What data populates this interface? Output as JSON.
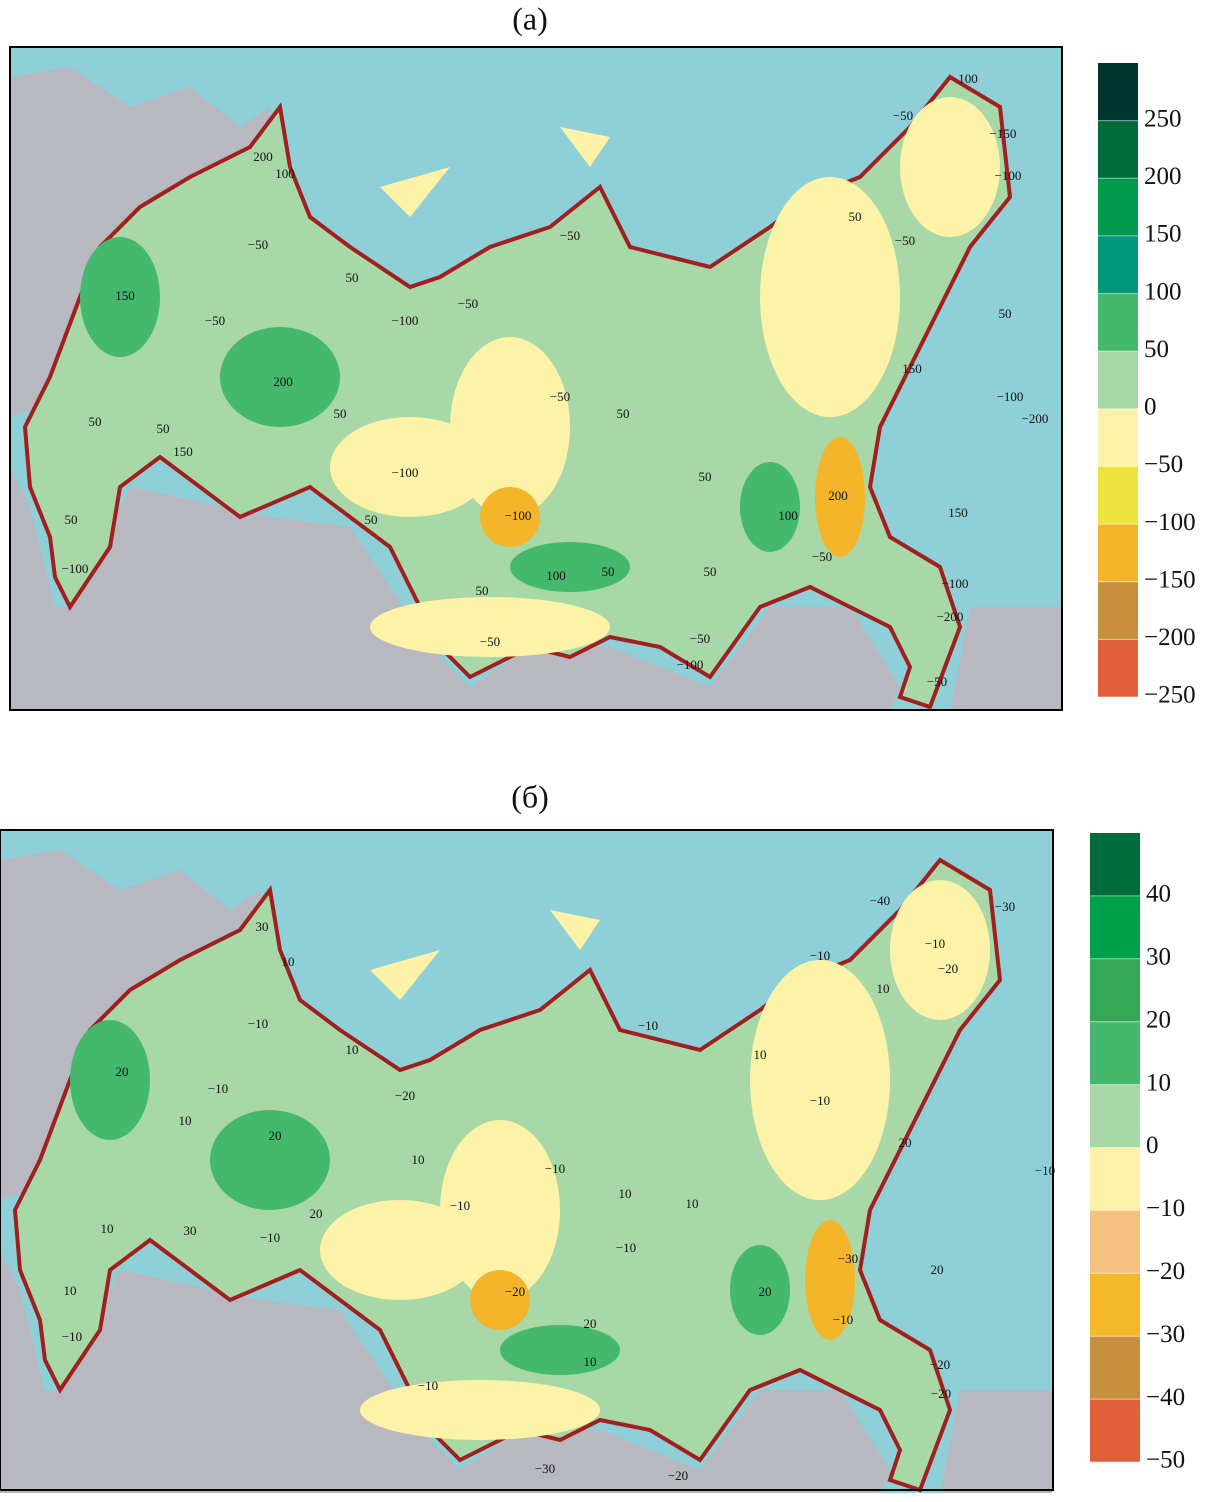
{
  "panels": [
    {
      "title": "(a)",
      "colorbar": {
        "lim": [
          -250,
          300
        ],
        "ticks": [
          {
            "value": 250,
            "label": "250"
          },
          {
            "value": 200,
            "label": "200"
          },
          {
            "value": 150,
            "label": "150"
          },
          {
            "value": 100,
            "label": "100"
          },
          {
            "value": 50,
            "label": "50"
          },
          {
            "value": 0,
            "label": "0"
          },
          {
            "value": -50,
            "label": "−50"
          },
          {
            "value": -100,
            "label": "−100"
          },
          {
            "value": -150,
            "label": "−150"
          },
          {
            "value": -200,
            "label": "−200"
          },
          {
            "value": -250,
            "label": "−250"
          }
        ],
        "colors": [
          "#e0603a",
          "#c8903e",
          "#f5b52a",
          "#efe33e",
          "#fdf3a8",
          "#a8d8a8",
          "#44b86c",
          "#00977a",
          "#009a4c",
          "#006c3c",
          "#003530"
        ]
      },
      "contour_labels": [
        "100",
        "−50",
        "−150",
        "−100",
        "200",
        "100",
        "−50",
        "50",
        "−50",
        "−50",
        "50",
        "150",
        "−50",
        "−100",
        "−50",
        "50",
        "200",
        "150",
        "−50",
        "50",
        "50",
        "50",
        "−100",
        "−200",
        "50",
        "150",
        "−100",
        "50",
        "200",
        "−100",
        "50",
        "50",
        "100",
        "150",
        "−50",
        "100",
        "50",
        "50",
        "−100",
        "50",
        "−200",
        "−50",
        "−50",
        "−100",
        "−50",
        "−100"
      ]
    },
    {
      "title": "(б)",
      "colorbar": {
        "lim": [
          -50,
          50
        ],
        "ticks": [
          {
            "value": 40,
            "label": "40"
          },
          {
            "value": 30,
            "label": "30"
          },
          {
            "value": 20,
            "label": "20"
          },
          {
            "value": 10,
            "label": "10"
          },
          {
            "value": 0,
            "label": "0"
          },
          {
            "value": -10,
            "label": "−10"
          },
          {
            "value": -20,
            "label": "−20"
          },
          {
            "value": -30,
            "label": "−30"
          },
          {
            "value": -40,
            "label": "−40"
          },
          {
            "value": -50,
            "label": "−50"
          }
        ],
        "colors": [
          "#e0603a",
          "#c8903e",
          "#f5b82a",
          "#f4c27e",
          "#fdf0a8",
          "#a8d8a8",
          "#44b86c",
          "#34a855",
          "#00a04a",
          "#006b3c"
        ]
      },
      "contour_labels": [
        "−40",
        "−30",
        "30",
        "10",
        "−10",
        "−10",
        "−20",
        "10",
        "−10",
        "−10",
        "10",
        "10",
        "20",
        "−10",
        "−20",
        "−10",
        "10",
        "20",
        "20",
        "10",
        "−10",
        "−10",
        "10",
        "−10",
        "10",
        "10",
        "30",
        "20",
        "−10",
        "−10",
        "−30",
        "20",
        "−20",
        "20",
        "10",
        "−10",
        "20",
        "−10",
        "10",
        "−20",
        "−20",
        "−10",
        "−30",
        "−20"
      ]
    }
  ]
}
